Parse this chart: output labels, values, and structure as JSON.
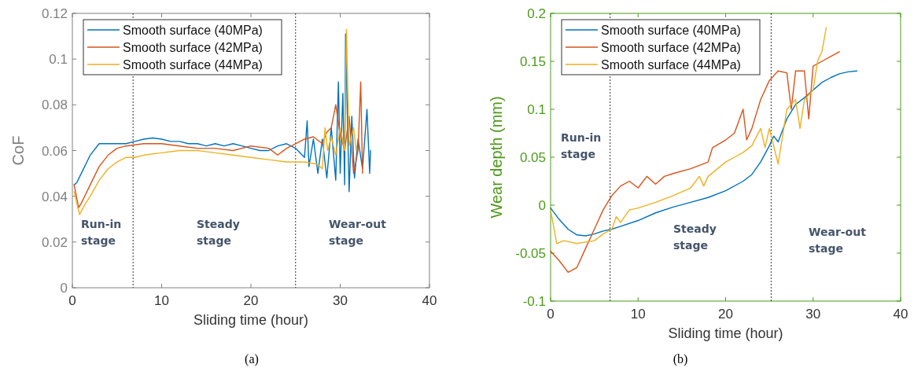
{
  "chart_data": [
    {
      "type": "line",
      "xlabel": "Sliding time (hour)",
      "ylabel": "CoF",
      "xlim": [
        0,
        40
      ],
      "xticks": [
        0,
        10,
        20,
        30,
        40
      ],
      "ylim": [
        0,
        0.12
      ],
      "yticks": [
        0,
        0.02,
        0.04,
        0.06,
        0.08,
        0.1,
        0.12
      ],
      "legend": "top left",
      "grid": false,
      "line_style": "solid",
      "series": [
        {
          "name": "Smooth surface (40MPa)",
          "color": "#0072bd",
          "x": [
            0.2,
            0.5,
            1,
            2,
            3,
            4,
            5,
            6,
            7,
            8,
            9,
            10,
            11,
            12,
            13,
            14,
            15,
            16,
            17,
            18,
            19,
            20,
            21,
            22,
            23,
            24,
            25,
            26,
            26.3,
            26.5,
            27,
            27.5,
            28,
            28.5,
            29,
            29.5,
            29.8,
            30,
            30.3,
            30.5,
            30.6,
            31,
            31.3,
            31.6,
            32,
            32.5,
            33,
            33.3,
            33.4
          ],
          "values": [
            0.045,
            0.046,
            0.05,
            0.058,
            0.063,
            0.063,
            0.063,
            0.063,
            0.064,
            0.065,
            0.0655,
            0.065,
            0.064,
            0.064,
            0.063,
            0.063,
            0.062,
            0.063,
            0.062,
            0.063,
            0.062,
            0.061,
            0.06,
            0.06,
            0.062,
            0.063,
            0.061,
            0.057,
            0.073,
            0.053,
            0.065,
            0.05,
            0.065,
            0.048,
            0.07,
            0.047,
            0.09,
            0.05,
            0.085,
            0.045,
            0.111,
            0.042,
            0.075,
            0.048,
            0.065,
            0.052,
            0.078,
            0.05,
            0.06
          ]
        },
        {
          "name": "Smooth surface (42MPa)",
          "color": "#d95319",
          "x": [
            0.2,
            0.7,
            1,
            2,
            3,
            4,
            5,
            6,
            8,
            10,
            12,
            14,
            16,
            18,
            20,
            22,
            23,
            24,
            25,
            26,
            27,
            28,
            28.5,
            29,
            29.5,
            30,
            30.5,
            31,
            31.5,
            32,
            32.3,
            32.5
          ],
          "values": [
            0.045,
            0.035,
            0.037,
            0.045,
            0.053,
            0.058,
            0.061,
            0.062,
            0.063,
            0.063,
            0.062,
            0.061,
            0.061,
            0.06,
            0.062,
            0.061,
            0.058,
            0.061,
            0.063,
            0.065,
            0.066,
            0.063,
            0.068,
            0.07,
            0.08,
            0.067,
            0.06,
            0.075,
            0.05,
            0.06,
            0.09,
            0.05
          ]
        },
        {
          "name": "Smooth surface (44MPa)",
          "color": "#edb120",
          "x": [
            0.2,
            0.8,
            1.5,
            2,
            3,
            4,
            5,
            6,
            7,
            8,
            10,
            12,
            14,
            16,
            18,
            20,
            22,
            24,
            26,
            27.5,
            28,
            28.3,
            28.6,
            29,
            29.5,
            30,
            30.5,
            30.7,
            31,
            31.5,
            31.8
          ],
          "values": [
            0.042,
            0.032,
            0.037,
            0.04,
            0.047,
            0.052,
            0.055,
            0.057,
            0.057,
            0.058,
            0.059,
            0.06,
            0.06,
            0.059,
            0.058,
            0.057,
            0.056,
            0.055,
            0.055,
            0.054,
            0.052,
            0.07,
            0.06,
            0.066,
            0.058,
            0.07,
            0.06,
            0.113,
            0.062,
            0.07,
            0.06
          ]
        }
      ],
      "ref_lines": [
        {
          "axis": "x",
          "value": 6.8,
          "color": "#000000",
          "line_style": "dotted"
        },
        {
          "axis": "x",
          "value": 25,
          "color": "#000000",
          "line_style": "dotted"
        }
      ],
      "annotations": [
        "Run-in\nstage",
        "Steady\nstage",
        "Wear-out\nstage",
        "(a)"
      ]
    },
    {
      "type": "line",
      "xlabel": "Sliding time (hour)",
      "ylabel": "Wear depth (mm)",
      "xlim": [
        0,
        40
      ],
      "xticks": [
        0,
        10,
        20,
        30,
        40
      ],
      "ylim": [
        -0.1,
        0.2
      ],
      "yticks": [
        -0.1,
        -0.05,
        0,
        0.05,
        0.1,
        0.15,
        0.2
      ],
      "legend": "top left",
      "grid": false,
      "line_style": "solid",
      "series": [
        {
          "name": "Smooth surface (40MPa)",
          "color": "#0072bd",
          "x": [
            0,
            1,
            2,
            3,
            4,
            5,
            6,
            7,
            8,
            10,
            12,
            14,
            16,
            18,
            20,
            22,
            23,
            24,
            25,
            25.5,
            26,
            27,
            28,
            29,
            30,
            31,
            32,
            33,
            34,
            35
          ],
          "values": [
            -0.003,
            -0.015,
            -0.025,
            -0.031,
            -0.032,
            -0.03,
            -0.027,
            -0.025,
            -0.022,
            -0.016,
            -0.008,
            -0.002,
            0.003,
            0.008,
            0.015,
            0.025,
            0.032,
            0.045,
            0.062,
            0.072,
            0.066,
            0.09,
            0.105,
            0.112,
            0.12,
            0.128,
            0.133,
            0.137,
            0.139,
            0.14
          ]
        },
        {
          "name": "Smooth surface (42MPa)",
          "color": "#d95319",
          "x": [
            0,
            1,
            2,
            3,
            4,
            5,
            6,
            7,
            8,
            9,
            10,
            11,
            12,
            13,
            14,
            16,
            18,
            18.5,
            20,
            21,
            22,
            22.4,
            23,
            24,
            25,
            26,
            27,
            27.5,
            28,
            29,
            29.5,
            30,
            31,
            32,
            33
          ],
          "values": [
            -0.048,
            -0.058,
            -0.07,
            -0.065,
            -0.045,
            -0.025,
            -0.005,
            0.01,
            0.02,
            0.025,
            0.018,
            0.03,
            0.022,
            0.03,
            0.033,
            0.038,
            0.045,
            0.06,
            0.068,
            0.075,
            0.1,
            0.068,
            0.08,
            0.11,
            0.13,
            0.14,
            0.138,
            0.1,
            0.14,
            0.14,
            0.09,
            0.145,
            0.15,
            0.155,
            0.16
          ]
        },
        {
          "name": "Smooth surface (44MPa)",
          "color": "#edb120",
          "x": [
            0,
            0.7,
            1.5,
            3,
            5,
            6,
            7,
            7.5,
            8,
            9,
            10,
            12,
            14,
            16,
            17,
            17.5,
            18,
            20,
            21,
            22,
            23,
            24,
            24.5,
            25,
            26,
            27,
            28,
            28.5,
            29,
            30,
            30.5,
            31,
            31.5
          ],
          "values": [
            -0.005,
            -0.04,
            -0.037,
            -0.04,
            -0.037,
            -0.03,
            -0.025,
            -0.012,
            -0.018,
            -0.005,
            -0.003,
            0.003,
            0.01,
            0.018,
            0.03,
            0.02,
            0.03,
            0.045,
            0.05,
            0.055,
            0.062,
            0.08,
            0.06,
            0.08,
            0.043,
            0.1,
            0.11,
            0.08,
            0.11,
            0.12,
            0.15,
            0.16,
            0.185
          ]
        }
      ],
      "ref_lines": [
        {
          "axis": "x",
          "value": 6.8,
          "color": "#000000",
          "line_style": "dotted"
        },
        {
          "axis": "x",
          "value": 25.2,
          "color": "#000000",
          "line_style": "dotted"
        }
      ],
      "annotations": [
        "Run-in\nstage",
        "Steady\nstage",
        "Wear-out\nstage",
        "(b)"
      ]
    }
  ]
}
